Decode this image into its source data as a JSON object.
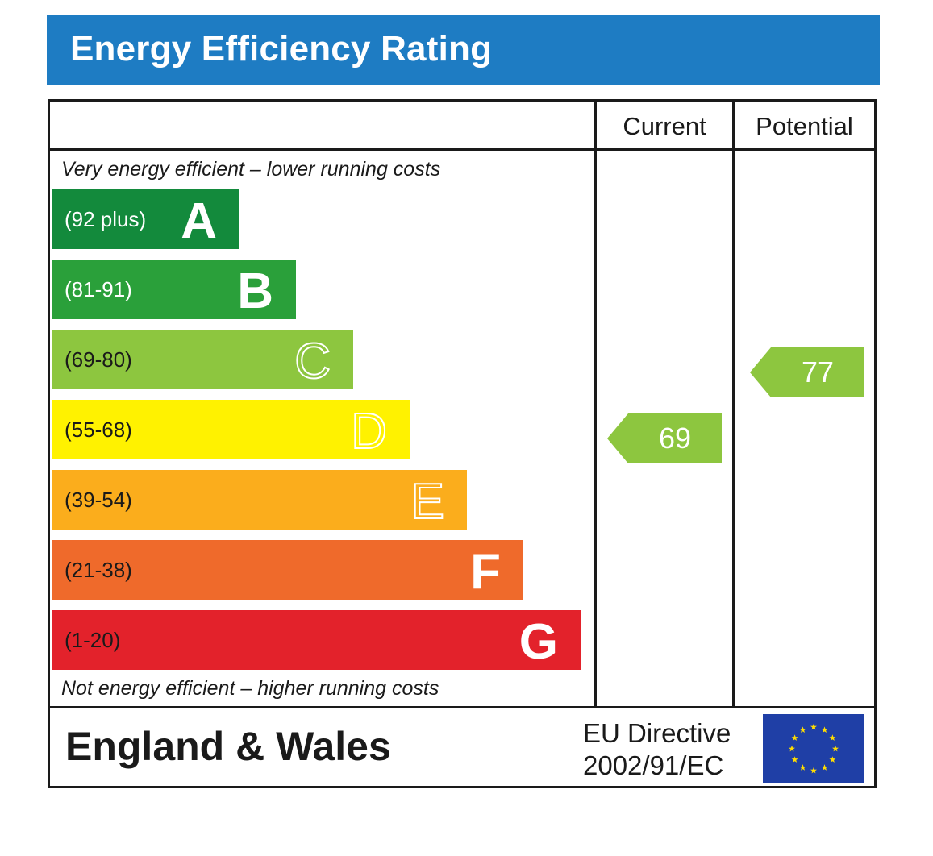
{
  "header": {
    "title": "Energy Efficiency Rating"
  },
  "columns": {
    "current": "Current",
    "potential": "Potential"
  },
  "notes": {
    "top": "Very energy efficient – lower running costs",
    "bottom": "Not energy efficient – higher running costs"
  },
  "footer": {
    "region": "England & Wales",
    "directive_line1": "EU Directive",
    "directive_line2": "2002/91/EC",
    "flag_icon": "eu-flag-icon"
  },
  "chart_data": {
    "type": "bar",
    "title": "Energy Efficiency Rating",
    "bands": [
      {
        "letter": "A",
        "range": "(92 plus)",
        "color": "#138a3c"
      },
      {
        "letter": "B",
        "range": "(81-91)",
        "color": "#2aa03a"
      },
      {
        "letter": "C",
        "range": "(69-80)",
        "color": "#8dc63f"
      },
      {
        "letter": "D",
        "range": "(55-68)",
        "color": "#fff200"
      },
      {
        "letter": "E",
        "range": "(39-54)",
        "color": "#fbad1c"
      },
      {
        "letter": "F",
        "range": "(21-38)",
        "color": "#ef6a2b"
      },
      {
        "letter": "G",
        "range": "(1-20)",
        "color": "#e3222b"
      }
    ],
    "current": {
      "value": 69,
      "band": "C",
      "color": "#8dc63f"
    },
    "potential": {
      "value": 77,
      "band": "C",
      "color": "#8dc63f"
    }
  }
}
